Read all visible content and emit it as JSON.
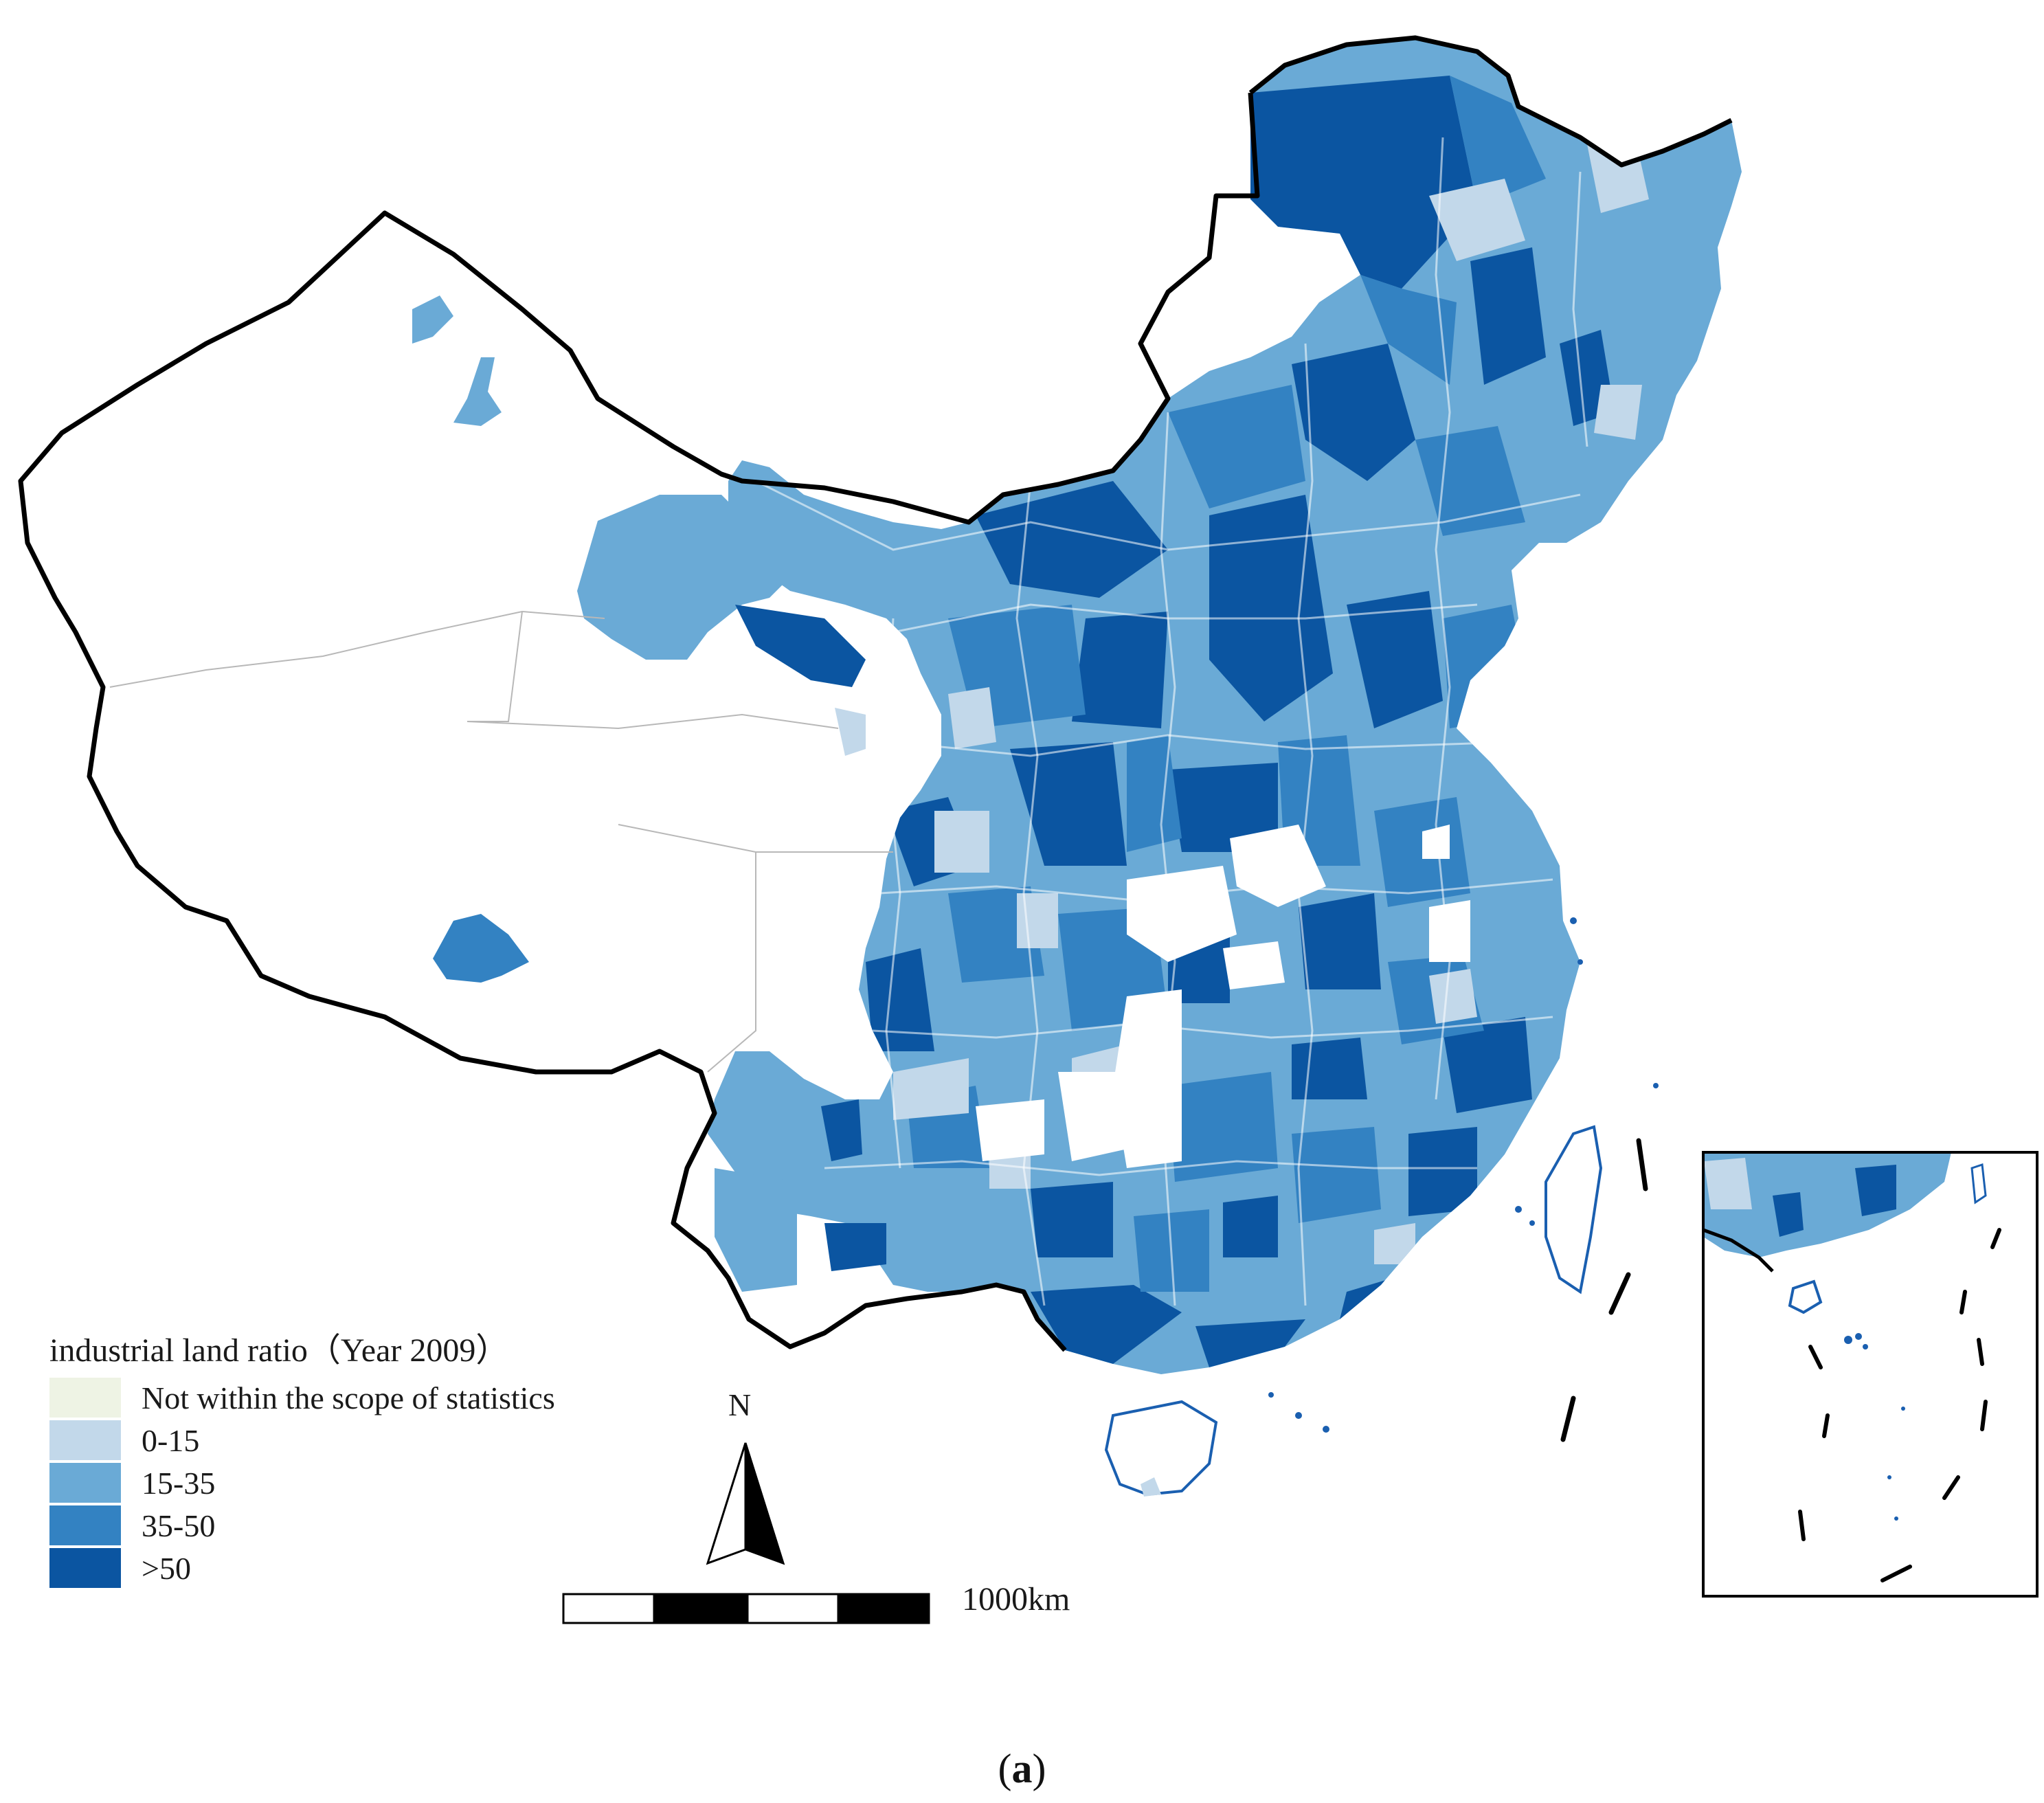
{
  "legend": {
    "title": "industrial land ratio（Year 2009）",
    "items": [
      {
        "label": "Not within the scope of statistics",
        "color": "#eef3e4"
      },
      {
        "label": "0-15",
        "color": "#c2d8ea"
      },
      {
        "label": "15-35",
        "color": "#6aaad6"
      },
      {
        "label": "35-50",
        "color": "#3382c2"
      },
      {
        "label": ">50",
        "color": "#0b55a1"
      }
    ]
  },
  "north_arrow": {
    "label": "N"
  },
  "scale_bar": {
    "label": "1000km"
  },
  "caption": {
    "open": "(",
    "letter": "a",
    "close": ")"
  },
  "colors": {
    "border": "#000000",
    "coast_outline": "#1a5fb0",
    "unfilled": "#ffffff"
  }
}
